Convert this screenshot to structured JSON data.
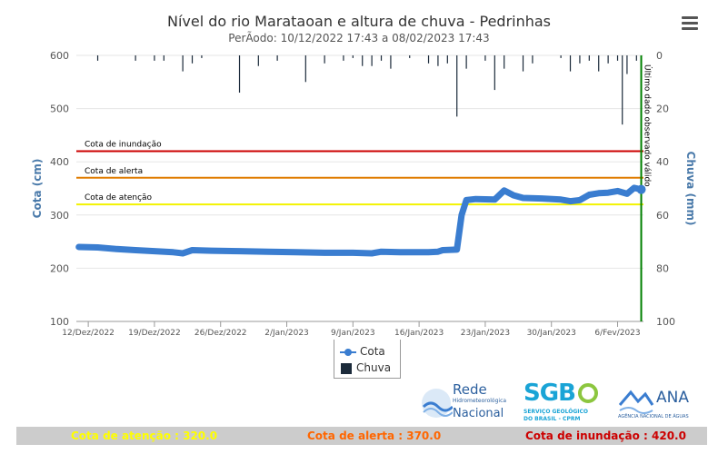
{
  "chart": {
    "title": "Nível do rio Marataoan e altura de chuva - Pedrinhas",
    "subtitle": "PerÃodo: 10/12/2022 17:43 a 08/02/2023 17:43"
  },
  "legend": {
    "cota_label": "Cota",
    "chuva_label": "Chuva"
  },
  "footer": {
    "atencao": "Cota de atenção : 320.0",
    "alerta": "Cota de alerta : 370.0",
    "inundacao": "Cota de inundação : 420.0"
  },
  "logos": {
    "rede": {
      "line1": "Rede",
      "line2": "Hidrometeorológica",
      "line3": "Nacional"
    },
    "sgb": {
      "name": "SGB",
      "line1": "SERVIÇO GEOLÓGICO",
      "line2": "DO BRASIL - CPRM"
    },
    "ana": {
      "name": "ANA",
      "line1": "AGÊNCIA NACIONAL DE ÁGUAS"
    }
  },
  "colors": {
    "cota": "#3a7dd0",
    "chuva": "#1b2a3a",
    "inundacao": "#cc0000",
    "alerta": "#e07b00",
    "atencao": "#f2f200",
    "last_obs": "#008000",
    "axis_text": "#555555",
    "axis_title": "#4a7aaa"
  },
  "chart_data": {
    "type": "line",
    "x_range": [
      "2022-12-10T17:43",
      "2023-02-08T17:43"
    ],
    "x_ticks": [
      {
        "date": "2022-12-12",
        "label": "12/Dez/2022"
      },
      {
        "date": "2022-12-19",
        "label": "19/Dez/2022"
      },
      {
        "date": "2022-12-26",
        "label": "26/Dez/2022"
      },
      {
        "date": "2023-01-02",
        "label": "2/Jan/2023"
      },
      {
        "date": "2023-01-09",
        "label": "9/Jan/2023"
      },
      {
        "date": "2023-01-16",
        "label": "16/Jan/2023"
      },
      {
        "date": "2023-01-23",
        "label": "23/Jan/2023"
      },
      {
        "date": "2023-01-30",
        "label": "30/Jan/2023"
      },
      {
        "date": "2023-02-06",
        "label": "6/Fev/2023"
      }
    ],
    "y_left": {
      "title": "Cota (cm)",
      "min": 100,
      "max": 600,
      "ticks": [
        100,
        200,
        300,
        400,
        500,
        600
      ]
    },
    "y_right": {
      "title": "Chuva (mm)",
      "min": 0,
      "max": 100,
      "reversed": true,
      "ticks": [
        0,
        20,
        40,
        60,
        80,
        100
      ]
    },
    "series": [
      {
        "name": "Cota",
        "type": "line",
        "axis": "left",
        "points": [
          [
            "2022-12-11",
            240
          ],
          [
            "2022-12-13",
            239
          ],
          [
            "2022-12-15",
            236
          ],
          [
            "2022-12-17",
            234
          ],
          [
            "2022-12-19",
            232
          ],
          [
            "2022-12-21",
            230
          ],
          [
            "2022-12-22",
            228
          ],
          [
            "2022-12-23",
            234
          ],
          [
            "2022-12-25",
            233
          ],
          [
            "2022-12-28",
            232
          ],
          [
            "2022-12-31",
            231
          ],
          [
            "2023-01-03",
            230
          ],
          [
            "2023-01-06",
            229
          ],
          [
            "2023-01-09",
            229
          ],
          [
            "2023-01-11",
            228
          ],
          [
            "2023-01-12",
            231
          ],
          [
            "2023-01-14",
            230
          ],
          [
            "2023-01-17",
            230
          ],
          [
            "2023-01-18",
            231
          ],
          [
            "2023-01-18T12:00",
            234
          ],
          [
            "2023-01-20",
            235
          ],
          [
            "2023-01-20T12:00",
            300
          ],
          [
            "2023-01-21",
            328
          ],
          [
            "2023-01-22",
            330
          ],
          [
            "2023-01-24",
            329
          ],
          [
            "2023-01-25",
            346
          ],
          [
            "2023-01-26",
            337
          ],
          [
            "2023-01-27",
            332
          ],
          [
            "2023-01-29",
            331
          ],
          [
            "2023-01-31",
            329
          ],
          [
            "2023-02-01",
            326
          ],
          [
            "2023-02-02",
            328
          ],
          [
            "2023-02-03",
            338
          ],
          [
            "2023-02-04",
            341
          ],
          [
            "2023-02-05",
            342
          ],
          [
            "2023-02-06",
            345
          ],
          [
            "2023-02-07",
            340
          ],
          [
            "2023-02-07T18:00",
            351
          ],
          [
            "2023-02-08T12:00",
            348
          ]
        ]
      },
      {
        "name": "Chuva",
        "type": "column",
        "axis": "right",
        "points": [
          [
            "2022-12-13",
            2
          ],
          [
            "2022-12-17",
            2
          ],
          [
            "2022-12-19",
            2
          ],
          [
            "2022-12-20",
            2
          ],
          [
            "2022-12-22",
            6
          ],
          [
            "2022-12-23",
            3
          ],
          [
            "2022-12-24",
            1
          ],
          [
            "2022-12-28",
            14
          ],
          [
            "2022-12-30",
            4
          ],
          [
            "2023-01-01",
            2
          ],
          [
            "2023-01-04",
            10
          ],
          [
            "2023-01-06",
            3
          ],
          [
            "2023-01-08",
            2
          ],
          [
            "2023-01-09",
            1
          ],
          [
            "2023-01-10",
            4
          ],
          [
            "2023-01-11",
            4
          ],
          [
            "2023-01-12",
            2
          ],
          [
            "2023-01-13",
            5
          ],
          [
            "2023-01-15",
            1
          ],
          [
            "2023-01-17",
            3
          ],
          [
            "2023-01-18",
            4
          ],
          [
            "2023-01-19",
            3
          ],
          [
            "2023-01-20",
            23
          ],
          [
            "2023-01-21",
            5
          ],
          [
            "2023-01-23",
            2
          ],
          [
            "2023-01-24",
            13
          ],
          [
            "2023-01-25",
            5
          ],
          [
            "2023-01-27",
            6
          ],
          [
            "2023-01-28",
            3
          ],
          [
            "2023-01-31",
            1
          ],
          [
            "2023-02-01",
            6
          ],
          [
            "2023-02-02",
            3
          ],
          [
            "2023-02-03",
            2
          ],
          [
            "2023-02-04",
            6
          ],
          [
            "2023-02-05",
            3
          ],
          [
            "2023-02-06",
            2
          ],
          [
            "2023-02-06T12:00",
            26
          ],
          [
            "2023-02-07",
            7
          ],
          [
            "2023-02-08",
            2
          ]
        ]
      }
    ],
    "plot_lines": [
      {
        "label": "Cota de inundação",
        "value": 420,
        "color": "#cc0000"
      },
      {
        "label": "Cota de alerta",
        "value": 370,
        "color": "#e07b00"
      },
      {
        "label": "Cota de atenção",
        "value": 320,
        "color": "#f2f200"
      }
    ],
    "last_obs": {
      "date": "2023-02-08T12:00",
      "label": "Último dado observado válido"
    }
  }
}
